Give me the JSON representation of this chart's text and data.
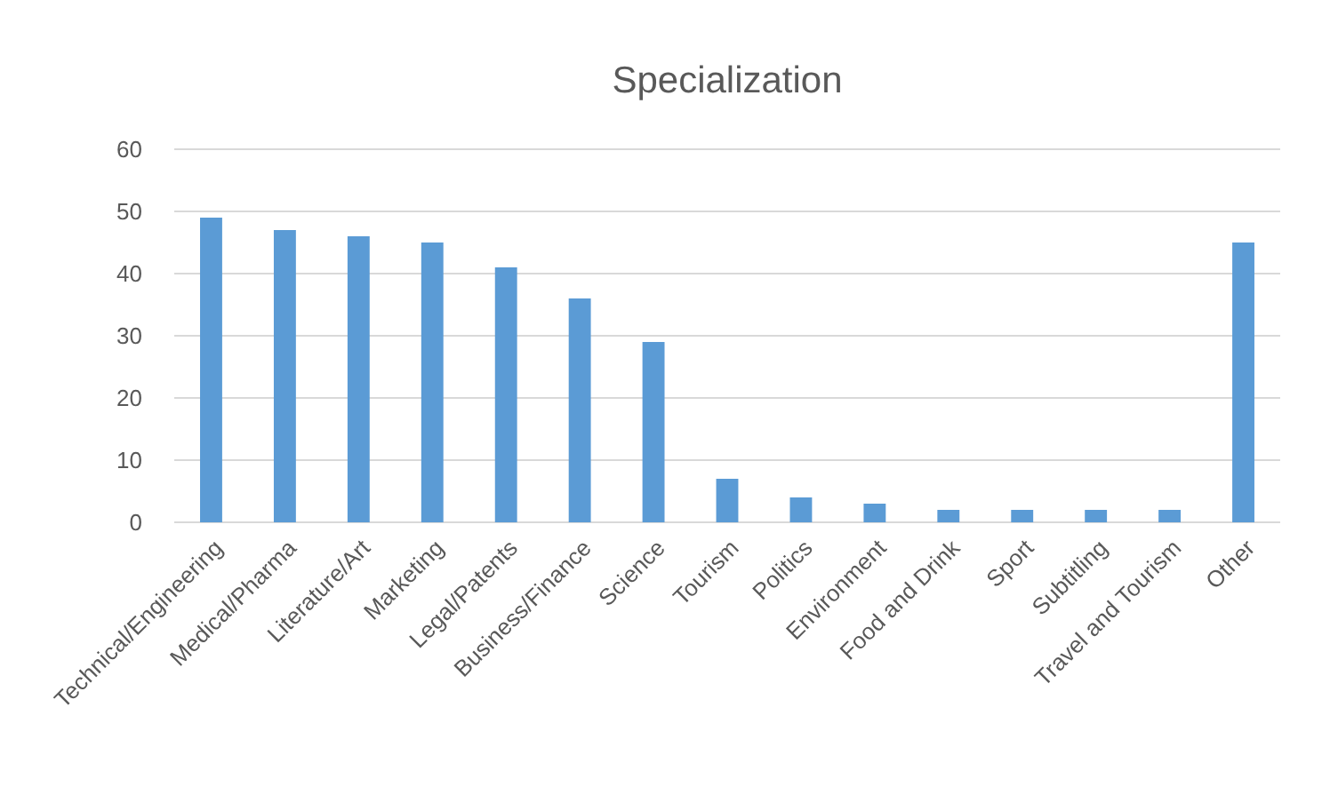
{
  "chart_data": {
    "type": "bar",
    "title": "Specialization",
    "categories": [
      "Technical/Engineering",
      "Medical/Pharma",
      "Literature/Art",
      "Marketing",
      "Legal/Patents",
      "Business/Finance",
      "Science",
      "Tourism",
      "Politics",
      "Environment",
      "Food and Drink",
      "Sport",
      "Subtitling",
      "Travel and Tourism",
      "Other"
    ],
    "values": [
      49,
      47,
      46,
      45,
      41,
      36,
      29,
      7,
      4,
      3,
      2,
      2,
      2,
      2,
      45
    ],
    "color": "#5b9bd5",
    "ylim": [
      0,
      60
    ],
    "yticks": [
      0,
      10,
      20,
      30,
      40,
      50,
      60
    ],
    "grid": "y"
  }
}
